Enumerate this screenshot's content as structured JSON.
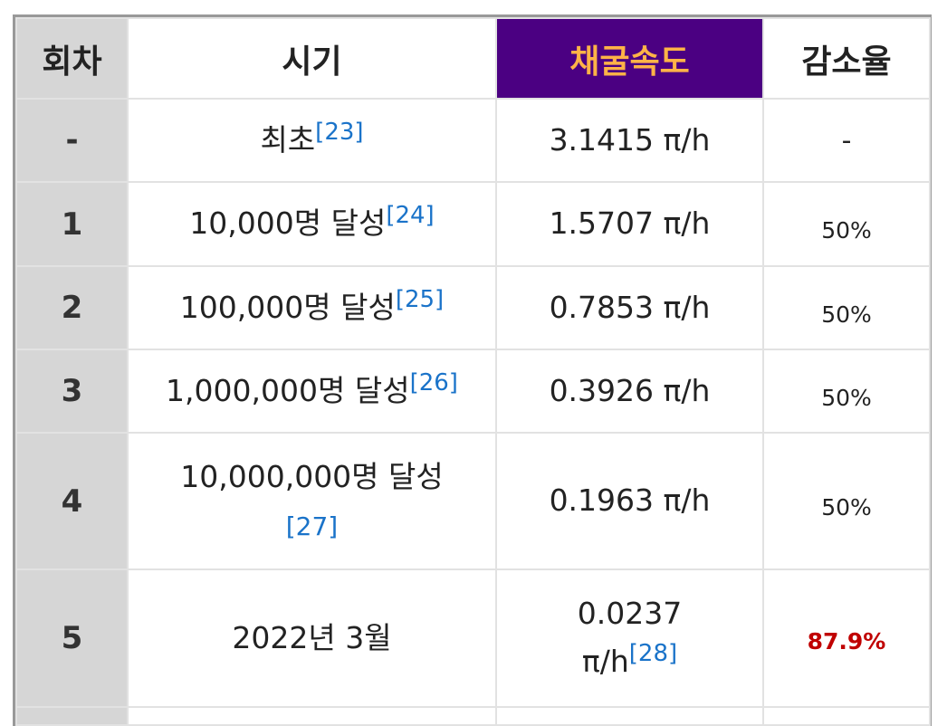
{
  "table": {
    "headers": {
      "idx": "회차",
      "time": "시기",
      "speed": "채굴속도",
      "rate": "감소율"
    },
    "rows": [
      {
        "idx": "-",
        "time": "최초",
        "ref": "[23]",
        "speed": "3.1415 π/h",
        "rate": "-"
      },
      {
        "idx": "1",
        "time": "10,000명 달성",
        "ref": "[24]",
        "speed": "1.5707 π/h",
        "rate": "50%"
      },
      {
        "idx": "2",
        "time": "100,000명 달성",
        "ref": "[25]",
        "speed": "0.7853 π/h",
        "rate": "50%"
      },
      {
        "idx": "3",
        "time": "1,000,000명 달성",
        "ref": "[26]",
        "speed": "0.3926 π/h",
        "rate": "50%"
      },
      {
        "idx": "4",
        "time": "10,000,000명 달성",
        "ref": "[27]",
        "speed": "0.1963 π/h",
        "rate": "50%"
      },
      {
        "idx": "5",
        "time": "2022년 3월",
        "speed_line1": "0.0237",
        "speed_line2": "π/h",
        "ref": "[28]",
        "rate": "87.9%"
      }
    ]
  },
  "colors": {
    "header_speed_bg": "#4b0082",
    "header_speed_text": "#ffb347",
    "highlight_rate": "#c00000",
    "ref_link": "#1a73c9",
    "index_bg": "#d6d6d6"
  }
}
